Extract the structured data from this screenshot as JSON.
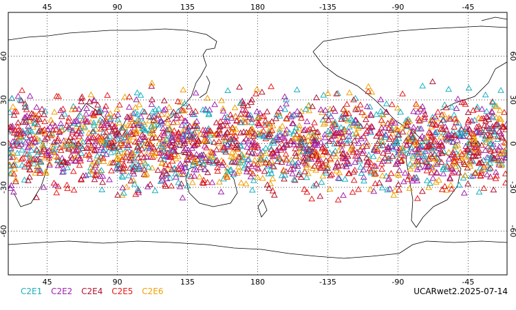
{
  "map": {
    "projection": "equirectangular",
    "center_longitude": 180,
    "lon_range": [
      20,
      340
    ],
    "lat_range": [
      -90,
      90
    ],
    "grid": "dotted",
    "top_lon_labels": [
      "45",
      "90",
      "135",
      "180",
      "-135",
      "-90",
      "-45"
    ],
    "bottom_lon_labels": [
      "45",
      "90",
      "135",
      "180",
      "-135",
      "-90",
      "-45"
    ],
    "lat_labels": [
      "60",
      "30",
      "0",
      "-30",
      "-60"
    ],
    "marker": "triangle-icon",
    "observation_lat_range": [
      -45,
      45
    ]
  },
  "legend": {
    "items": [
      {
        "label": "C2E1",
        "color": "#18b0c0"
      },
      {
        "label": "C2E2",
        "color": "#a020b0"
      },
      {
        "label": "C2E4",
        "color": "#b01030"
      },
      {
        "label": "C2E5",
        "color": "#e81818"
      },
      {
        "label": "C2E6",
        "color": "#f0a000"
      }
    ]
  },
  "caption": "UCARwet2.2025-07-14"
}
